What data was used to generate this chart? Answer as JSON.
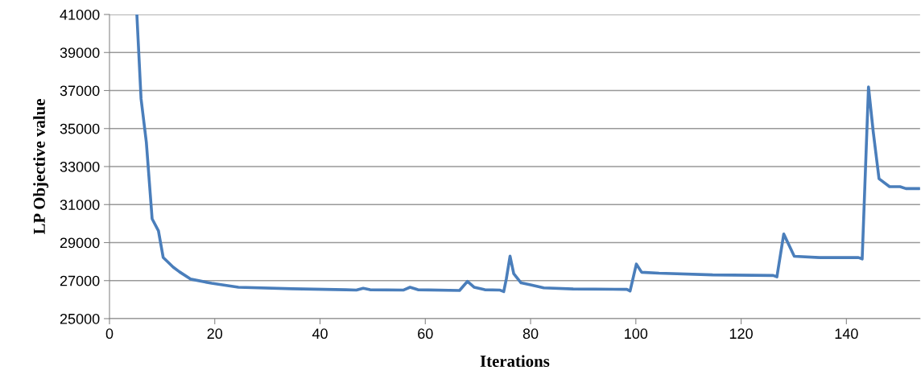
{
  "chart_data": {
    "type": "line",
    "xlabel": "Iterations",
    "ylabel": "LP Objective value",
    "xlim": [
      0,
      154
    ],
    "xticks": [
      0,
      20,
      40,
      60,
      80,
      100,
      120,
      140
    ],
    "ylim": [
      25000,
      41000
    ],
    "yticks": [
      25000,
      27000,
      29000,
      31000,
      33000,
      35000,
      37000,
      39000,
      41000
    ],
    "grid": "y",
    "legend": false,
    "marker": "none",
    "line_style": "solid",
    "series": [
      {
        "color": "#4a7ebb",
        "x": [
          5.2,
          6.0,
          7.0,
          8.1,
          9.3,
          10.2,
          12.1,
          13.3,
          15.4,
          19.4,
          24.5,
          34.7,
          44.9,
          46.9,
          48.2,
          49.5,
          55.8,
          57.1,
          58.6,
          66.5,
          68.0,
          69.3,
          71.3,
          74.2,
          74.9,
          75.4,
          76.1,
          76.8,
          78.2,
          80.0,
          82.5,
          88.1,
          98.3,
          98.9,
          100.1,
          101.1,
          104.4,
          114.6,
          126.1,
          126.8,
          128.1,
          130.1,
          135.0,
          142.3,
          143.0,
          144.2,
          145.1,
          146.2,
          148.2,
          150.2,
          151.3,
          153.9
        ],
        "values": [
          41000,
          36560,
          34280,
          30250,
          29620,
          28220,
          27710,
          27460,
          27080,
          26860,
          26650,
          26570,
          26520,
          26500,
          26600,
          26520,
          26500,
          26650,
          26520,
          26480,
          26960,
          26650,
          26520,
          26500,
          26420,
          27100,
          28290,
          27370,
          26880,
          26780,
          26620,
          26560,
          26540,
          26450,
          27870,
          27440,
          27390,
          27300,
          27270,
          27200,
          29450,
          28280,
          28210,
          28210,
          28140,
          37190,
          34830,
          32360,
          31940,
          31940,
          31840,
          31840
        ]
      }
    ]
  }
}
